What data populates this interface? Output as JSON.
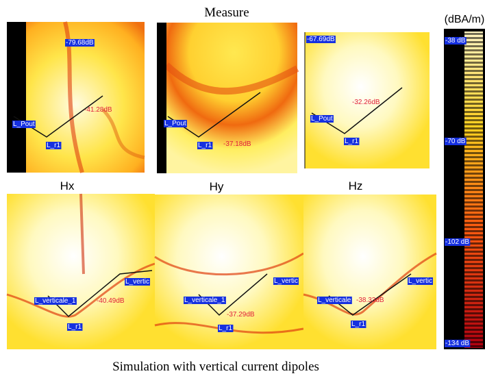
{
  "header": {
    "title": "Measure",
    "unit": "(dBA/m)"
  },
  "columns": [
    "Hx",
    "Hy",
    "Hz"
  ],
  "panels": [
    {
      "labels": [
        "-79.68dB",
        "-41.28dB",
        "L_Pout",
        "L_r1"
      ]
    },
    {
      "labels": [
        "L_Pout",
        "L_r1",
        "-37.18dB"
      ]
    },
    {
      "labels": [
        "-67.69dB",
        "-32.26dB",
        "L_Pout",
        "L_r1"
      ]
    },
    {
      "labels": [
        "L_verticale_1",
        "L_vertic",
        "-40.49dB",
        "L_r1"
      ]
    },
    {
      "labels": [
        "L_verticale_1",
        "L_vertic",
        "-37.29dB",
        "L_r1"
      ]
    },
    {
      "labels": [
        "L_verticale",
        "L_vertic",
        "-38.33dB",
        "L_r1"
      ]
    }
  ],
  "scale": {
    "ticks": [
      "-38 dB",
      "-70 dB",
      "-102 dB",
      "-134 dB"
    ]
  },
  "caption": "Simulation with vertical current dipoles"
}
